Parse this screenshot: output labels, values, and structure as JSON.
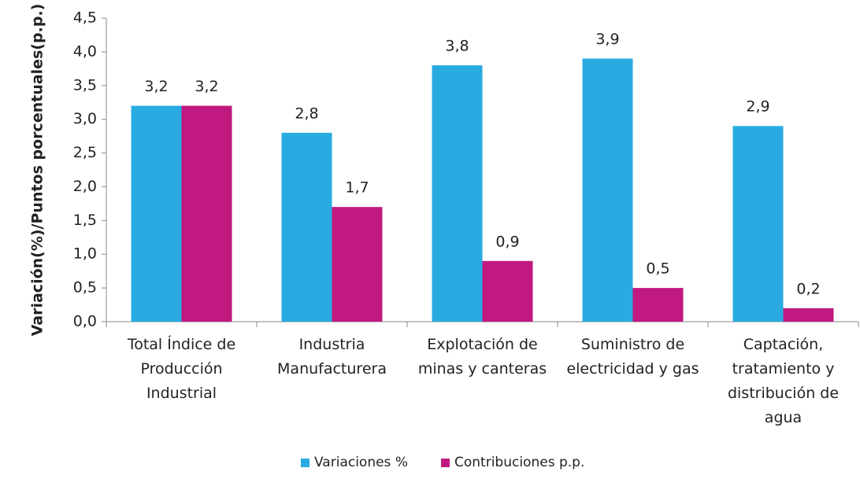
{
  "chart_data": {
    "type": "bar",
    "ylabel": "Variación(%)/Puntos porcentuales(p.p.)",
    "categories": [
      "Total Índice de Producción Industrial",
      "Industria Manufacturera",
      "Explotación de minas y canteras",
      "Suministro de electricidad y gas",
      "Captación, tratamiento y distribución de agua"
    ],
    "series": [
      {
        "name": "Variaciones %",
        "color": "#29abe2",
        "values": [
          3.2,
          2.8,
          3.8,
          3.9,
          2.9
        ],
        "value_labels": [
          "3,2",
          "2,8",
          "3,8",
          "3,9",
          "2,9"
        ]
      },
      {
        "name": "Contribuciones p.p.",
        "color": "#c0197f",
        "values": [
          3.2,
          1.7,
          0.9,
          0.5,
          0.2
        ],
        "value_labels": [
          "3,2",
          "1,7",
          "0,9",
          "0,5",
          "0,2"
        ]
      }
    ],
    "ylim": [
      0,
      4.5
    ],
    "yticks": [
      {
        "value": 0,
        "label": "0,0"
      },
      {
        "value": 0.5,
        "label": "0,5"
      },
      {
        "value": 1,
        "label": "1,0"
      },
      {
        "value": 1.5,
        "label": "1,5"
      },
      {
        "value": 2,
        "label": "2,0"
      },
      {
        "value": 2.5,
        "label": "2,5"
      },
      {
        "value": 3,
        "label": "3,0"
      },
      {
        "value": 3.5,
        "label": "3,5"
      },
      {
        "value": 4,
        "label": "4,0"
      },
      {
        "value": 4.5,
        "label": "4,5"
      }
    ],
    "legend": "bottom"
  }
}
